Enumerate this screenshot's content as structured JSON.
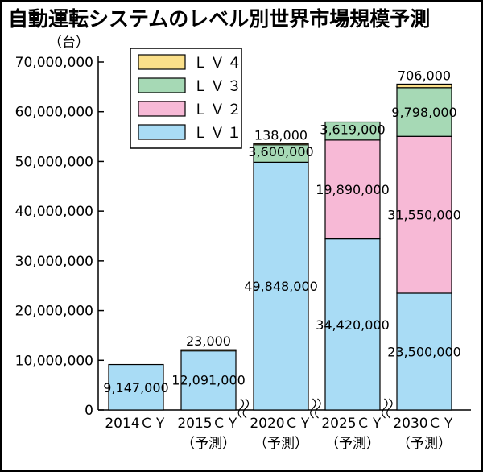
{
  "chart_data": {
    "type": "bar",
    "stacked": true,
    "title": "自動運転システムのレベル別世界市場規模予測",
    "unit_label": "（台）",
    "categories": [
      {
        "line1": "2014ＣＹ",
        "line2": ""
      },
      {
        "line1": "2015ＣＹ",
        "line2": "（予測）"
      },
      {
        "line1": "2020ＣＹ",
        "line2": "（予測）"
      },
      {
        "line1": "2025ＣＹ",
        "line2": "（予測）"
      },
      {
        "line1": "2030ＣＹ",
        "line2": "（予測）"
      }
    ],
    "series": [
      {
        "name": "ＬＶ１",
        "color": "#a9dcf5",
        "values": [
          9147000,
          12091000,
          49848000,
          34420000,
          23500000
        ],
        "labels": [
          "9,147,000",
          "12,091,000",
          "49,848,000",
          "34,420,000",
          "23,500,000"
        ]
      },
      {
        "name": "ＬＶ２",
        "color": "#f7b9d6",
        "values": [
          0,
          0,
          0,
          19890000,
          31550000
        ],
        "labels": [
          "",
          "",
          "",
          "19,890,000",
          "31,550,000"
        ]
      },
      {
        "name": "ＬＶ３",
        "color": "#a6d9b5",
        "values": [
          0,
          0,
          3600000,
          3619000,
          9798000
        ],
        "labels": [
          "",
          "",
          "3,600,000",
          "3,619,000",
          "9,798,000"
        ]
      },
      {
        "name": "ＬＶ４",
        "color": "#fbe08a",
        "values": [
          0,
          23000,
          138000,
          0,
          706000
        ],
        "labels": [
          "",
          "23,000",
          "138,000",
          "",
          "706,000"
        ]
      }
    ],
    "ylim": [
      0,
      70000000
    ],
    "yticks": [
      0,
      10000000,
      20000000,
      30000000,
      40000000,
      50000000,
      60000000,
      70000000
    ],
    "ytick_labels": [
      "0",
      "10,000,000",
      "20,000,000",
      "30,000,000",
      "40,000,000",
      "50,000,000",
      "60,000,000",
      "70,000,000"
    ],
    "axis_breaks": "between categories 2–3, 3–4, 4–5",
    "legend_position": "top-left inside plot",
    "grid": false
  }
}
